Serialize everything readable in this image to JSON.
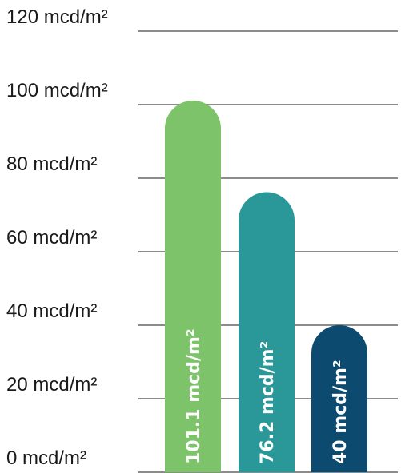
{
  "chart_data": {
    "type": "bar",
    "title": "",
    "xlabel": "",
    "ylabel": "",
    "ylim": [
      0,
      120
    ],
    "grid": true,
    "y_ticks": [
      {
        "value": 0,
        "label": "0 mcd/m²"
      },
      {
        "value": 20,
        "label": "20 mcd/m²"
      },
      {
        "value": 40,
        "label": "40 mcd/m²"
      },
      {
        "value": 60,
        "label": "60 mcd/m²"
      },
      {
        "value": 80,
        "label": "80 mcd/m²"
      },
      {
        "value": 100,
        "label": "100 mcd/m²"
      },
      {
        "value": 120,
        "label": "120 mcd/m²"
      }
    ],
    "bars": [
      {
        "value": 101.1,
        "label": "101.1 mcd/m²",
        "color": "#7dc36a"
      },
      {
        "value": 76.2,
        "label": "76.2 mcd/m²",
        "color": "#2a9898"
      },
      {
        "value": 40,
        "label": "40 mcd/m²",
        "color": "#0d4a70"
      }
    ],
    "colors": {
      "grid": "#8c8c8c",
      "text": "#1a1a1a",
      "bar_label": "#ffffff"
    }
  }
}
